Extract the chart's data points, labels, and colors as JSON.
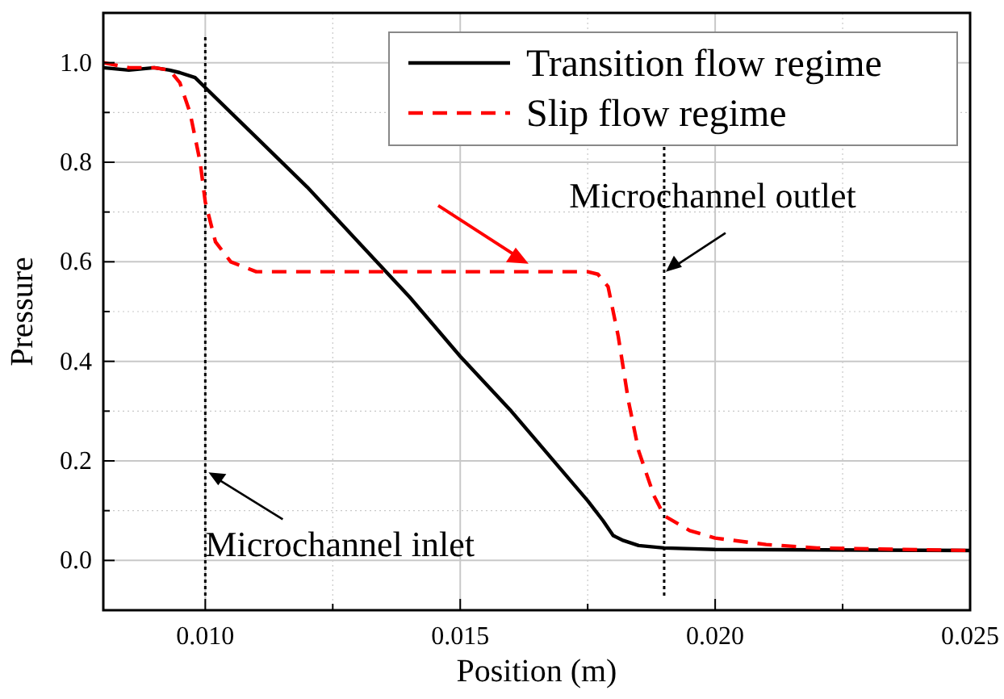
{
  "chart_data": {
    "type": "line",
    "xlabel": "Position (m)",
    "ylabel": "Pressure",
    "xlim": [
      0.008,
      0.025
    ],
    "ylim": [
      -0.1,
      1.1
    ],
    "xticks": [
      {
        "value": 0.01,
        "label": "0.010"
      },
      {
        "value": 0.0125,
        "label": null
      },
      {
        "value": 0.015,
        "label": "0.015"
      },
      {
        "value": 0.0175,
        "label": null
      },
      {
        "value": 0.02,
        "label": "0.020"
      },
      {
        "value": 0.0225,
        "label": null
      },
      {
        "value": 0.025,
        "label": "0.025"
      }
    ],
    "yticks": [
      {
        "value": 0,
        "label": "0.0"
      },
      {
        "value": 0.1,
        "label": null
      },
      {
        "value": 0.2,
        "label": "0.2"
      },
      {
        "value": 0.3,
        "label": null
      },
      {
        "value": 0.4,
        "label": "0.4"
      },
      {
        "value": 0.5,
        "label": null
      },
      {
        "value": 0.6,
        "label": "0.6"
      },
      {
        "value": 0.7,
        "label": null
      },
      {
        "value": 0.8,
        "label": "0.8"
      },
      {
        "value": 0.9,
        "label": null
      },
      {
        "value": 1,
        "label": "1.0"
      }
    ],
    "grid": true,
    "legend": "top right",
    "series": [
      {
        "name": "Transition flow regime",
        "color": "#000000",
        "line_style": "solid",
        "x": [
          0.008,
          0.0085,
          0.009,
          0.0093,
          0.0095,
          0.0098,
          0.01,
          0.0105,
          0.011,
          0.012,
          0.013,
          0.014,
          0.015,
          0.016,
          0.017,
          0.0175,
          0.0178,
          0.018,
          0.0182,
          0.0185,
          0.019,
          0.02,
          0.025
        ],
        "values": [
          0.99,
          0.985,
          0.99,
          0.985,
          0.98,
          0.97,
          0.95,
          0.9,
          0.85,
          0.75,
          0.64,
          0.53,
          0.41,
          0.3,
          0.18,
          0.12,
          0.08,
          0.05,
          0.04,
          0.03,
          0.025,
          0.022,
          0.02
        ]
      },
      {
        "name": "Slip flow regime",
        "color": "#ff0000",
        "line_style": "dashed",
        "x": [
          0.008,
          0.0085,
          0.009,
          0.0093,
          0.0095,
          0.0097,
          0.0099,
          0.01,
          0.0102,
          0.0105,
          0.011,
          0.0175,
          0.0177,
          0.0179,
          0.0181,
          0.0183,
          0.0185,
          0.0188,
          0.019,
          0.0195,
          0.02,
          0.021,
          0.022,
          0.025
        ],
        "values": [
          1,
          0.99,
          0.99,
          0.985,
          0.96,
          0.9,
          0.8,
          0.72,
          0.64,
          0.6,
          0.58,
          0.58,
          0.575,
          0.55,
          0.45,
          0.32,
          0.22,
          0.13,
          0.09,
          0.06,
          0.045,
          0.032,
          0.025,
          0.02
        ]
      }
    ],
    "ref_lines": [
      {
        "axis": "x",
        "value": 0.01,
        "line_style": "dotted",
        "color": "#000000"
      },
      {
        "axis": "x",
        "value": 0.019,
        "line_style": "dotted",
        "color": "#000000"
      }
    ],
    "annotations": [
      {
        "text": "Microchannel inlet",
        "x": 0.01,
        "y": 0.18
      },
      {
        "text": "Microchannel outlet",
        "x": 0.019,
        "y": 0.58
      }
    ]
  }
}
